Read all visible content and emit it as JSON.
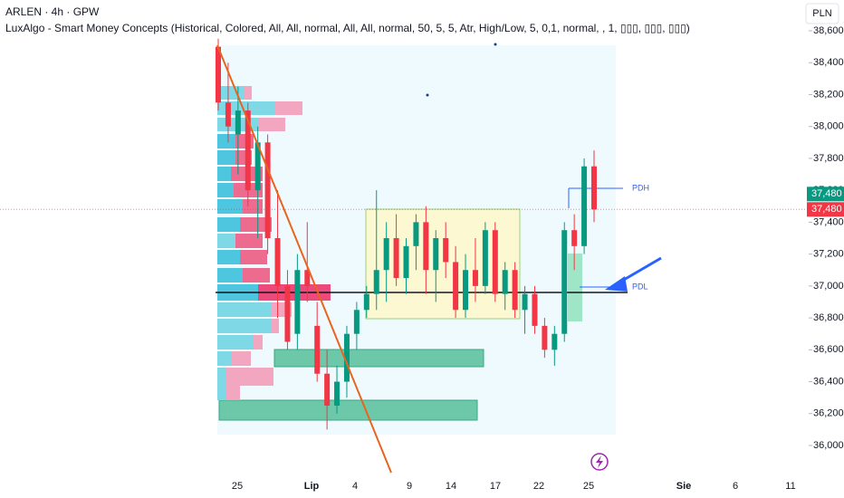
{
  "chart_data": {
    "type": "candlestick",
    "title": "ARLEN · 4h · GPW",
    "subtitle": "LuxAlgo - Smart Money Concepts (Historical, Colored, All, All, normal, All, All, normal, 50, 5, 5, Atr, High/Low, 5, 0,1, normal, , 1, ▯▯▯, ▯▯▯, ▯▯▯)",
    "currency": "PLN",
    "categories": [
      "25",
      "Lip",
      "4",
      "9",
      "14",
      "17",
      "22",
      "25",
      "Sie",
      "6",
      "11"
    ],
    "open": [
      38500,
      38150,
      37950,
      38100,
      37600,
      37900,
      37300,
      37000,
      36700,
      37100,
      36750,
      36450,
      36250,
      36400,
      36700,
      36850,
      36950,
      37100,
      37300,
      37050,
      37250,
      37400,
      37100,
      37300,
      37150,
      36850,
      37100,
      37000,
      37350,
      36950,
      37100,
      36850,
      36950,
      36750,
      36600,
      36700,
      37350,
      37250,
      37750
    ],
    "high": [
      38550,
      38400,
      38250,
      38150,
      38000,
      37950,
      37600,
      37100,
      37200,
      37400,
      36900,
      36600,
      36500,
      36750,
      36900,
      37000,
      37600,
      37400,
      37450,
      37300,
      37450,
      37500,
      37350,
      37400,
      37250,
      37200,
      37300,
      37400,
      37400,
      37150,
      37150,
      37000,
      37000,
      36800,
      36750,
      37400,
      37450,
      37800,
      37850
    ],
    "low": [
      38100,
      37900,
      37700,
      37500,
      37300,
      37200,
      36800,
      36600,
      36600,
      36900,
      36400,
      36100,
      36200,
      36300,
      36600,
      36800,
      36850,
      36900,
      37000,
      36950,
      37100,
      36950,
      36900,
      37050,
      36800,
      36800,
      36900,
      36950,
      36900,
      36850,
      36800,
      36700,
      36700,
      36550,
      36500,
      36650,
      37100,
      37200,
      37400
    ],
    "close": [
      38150,
      38000,
      38100,
      37600,
      37900,
      37300,
      37000,
      36650,
      37100,
      37000,
      36450,
      36250,
      36400,
      36700,
      36850,
      36950,
      37100,
      37300,
      37050,
      37250,
      37400,
      37100,
      37300,
      37150,
      36850,
      37100,
      37000,
      37350,
      36950,
      37100,
      36850,
      36950,
      36750,
      36600,
      36700,
      37350,
      37250,
      37750,
      37480
    ],
    "up_color": "#089981",
    "down_color": "#f23645",
    "ylim": [
      36000,
      38600
    ],
    "yticks": [
      {
        "value": 36000,
        "label": "36,000"
      },
      {
        "value": 36200,
        "label": "36,200"
      },
      {
        "value": 36400,
        "label": "36,400"
      },
      {
        "value": 36600,
        "label": "36,600"
      },
      {
        "value": 36800,
        "label": "36,800"
      },
      {
        "value": 37000,
        "label": "37,000"
      },
      {
        "value": 37200,
        "label": "37,200"
      },
      {
        "value": 37400,
        "label": "37,400"
      },
      {
        "value": 37600,
        "label": "37,600"
      },
      {
        "value": 37800,
        "label": "37,800"
      },
      {
        "value": 38000,
        "label": "38,000"
      },
      {
        "value": 38200,
        "label": "38,200"
      },
      {
        "value": 38400,
        "label": "38,400"
      },
      {
        "value": 38600,
        "label": "38,600"
      }
    ],
    "price_tags": [
      {
        "value": 37480,
        "label": "37,480",
        "color": "#089981"
      },
      {
        "value": 37480,
        "label": "37,480",
        "color": "#f23645"
      }
    ],
    "annotations": [
      "PDH",
      "PDL"
    ]
  }
}
